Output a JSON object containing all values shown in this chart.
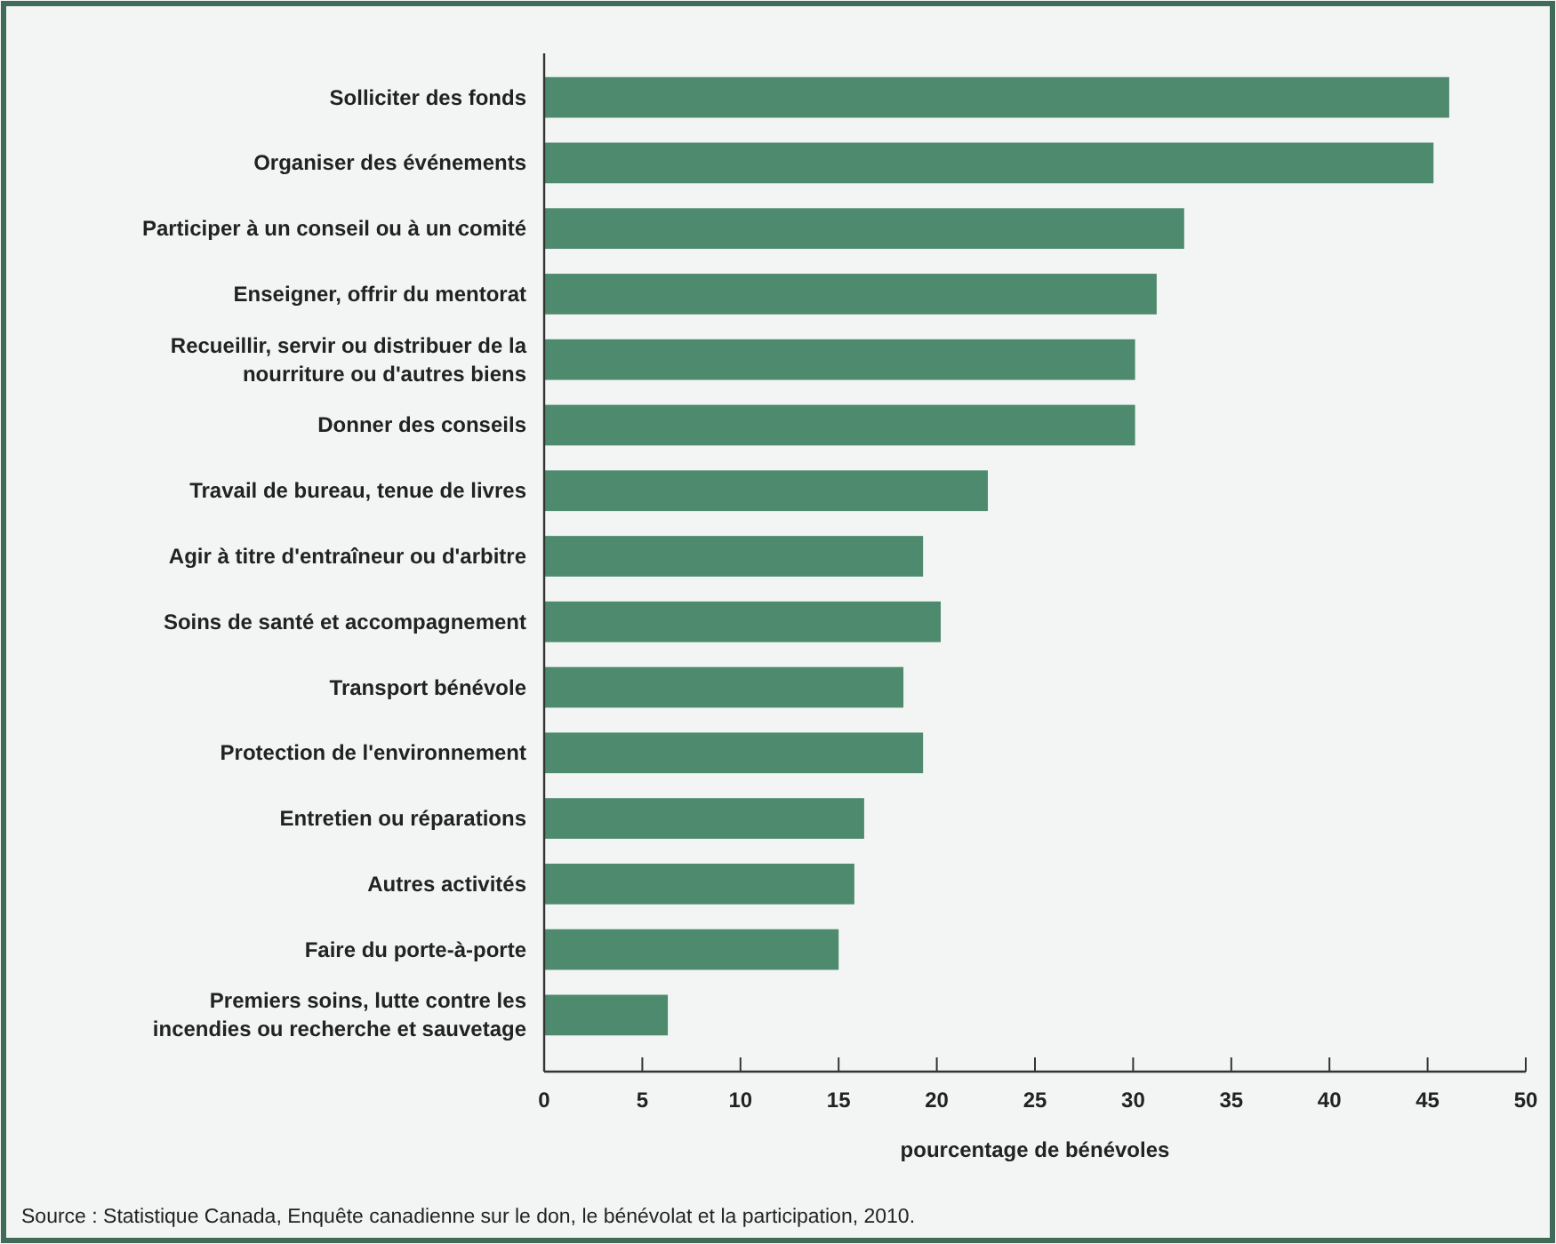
{
  "chart_data": {
    "type": "bar",
    "orientation": "horizontal",
    "categories": [
      "Solliciter des fonds",
      "Organiser des événements",
      "Participer à un conseil ou à un comité",
      "Enseigner, offrir du mentorat",
      "Recueillir, servir ou distribuer de la nourriture ou d'autres biens",
      "Donner des conseils",
      "Travail de bureau, tenue de livres",
      "Agir à titre d'entraîneur ou d'arbitre",
      "Soins de santé et accompagnement",
      "Transport bénévole",
      "Protection de l'environnement",
      "Entretien ou réparations",
      "Autres activités",
      "Faire du porte-à-porte",
      "Premiers soins, lutte contre les incendies ou recherche et sauvetage"
    ],
    "values": [
      46.1,
      45.3,
      32.6,
      31.2,
      30.1,
      30.1,
      22.6,
      19.3,
      20.2,
      18.3,
      19.3,
      16.3,
      15.8,
      15.0,
      6.3
    ],
    "color": "#4e8a6e",
    "xlim": [
      0,
      50
    ],
    "xticks": [
      0,
      5,
      10,
      15,
      20,
      25,
      30,
      35,
      40,
      45,
      50
    ],
    "xlabel": "pourcentage de bénévoles",
    "annotations": [
      "Source : Statistique Canada, Enquête canadienne sur le don, le bénévolat et la participation, 2010."
    ]
  }
}
